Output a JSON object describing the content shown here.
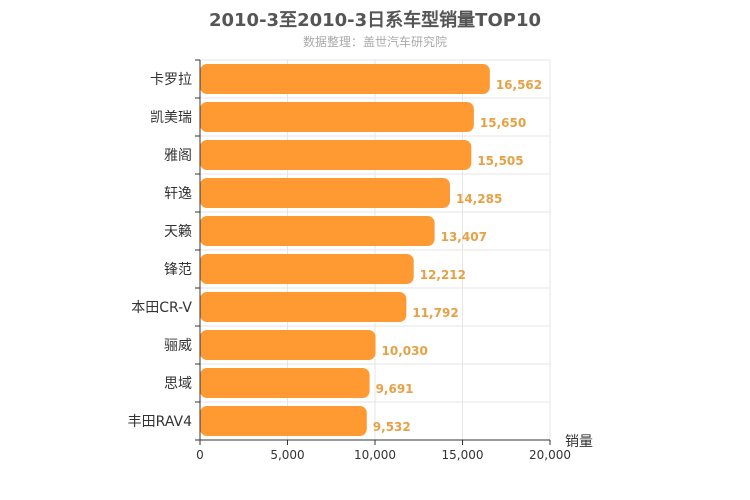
{
  "chart_data": {
    "type": "bar",
    "orientation": "horizontal",
    "title": "2010-3至2010-3日系车型销量TOP10",
    "subtitle": "数据整理：盖世汽车研究院",
    "xlabel": "销量",
    "ylabel": "",
    "xlim": [
      0,
      20000
    ],
    "ticks": [
      0,
      5000,
      10000,
      15000,
      20000
    ],
    "tick_labels": [
      "0",
      "5,000",
      "10,000",
      "15,000",
      "20,000"
    ],
    "grid": true,
    "categories": [
      "卡罗拉",
      "凯美瑞",
      "雅阁",
      "轩逸",
      "天籁",
      "锋范",
      "本田CR-V",
      "骊威",
      "思域",
      "丰田RAV4"
    ],
    "values": [
      16562,
      15650,
      15505,
      14285,
      13407,
      12212,
      11792,
      10030,
      9691,
      9532
    ],
    "value_labels": [
      "16,562",
      "15,650",
      "15,505",
      "14,285",
      "13,407",
      "12,212",
      "11,792",
      "10,030",
      "9,691",
      "9,532"
    ],
    "colors": {
      "bar": "#ff9a33",
      "data_label": "#e8a045"
    }
  }
}
